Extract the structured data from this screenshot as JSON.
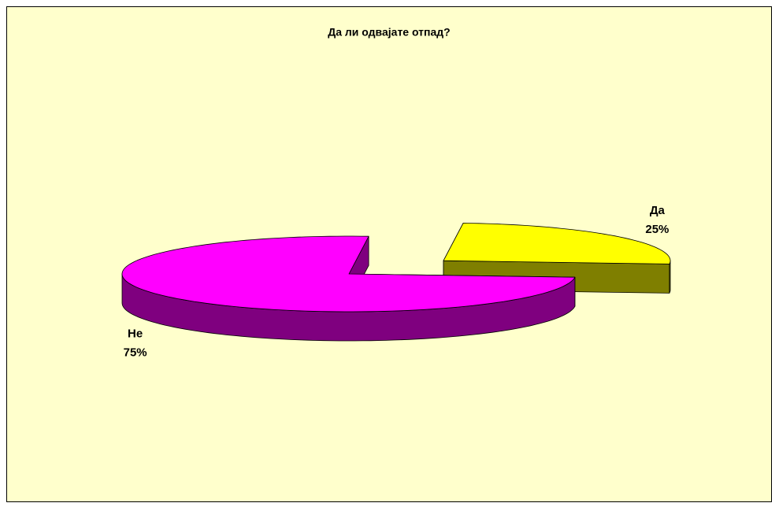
{
  "chart_data": {
    "type": "pie",
    "title": "Да ли одвајате отпад?",
    "categories": [
      "Да",
      "Не"
    ],
    "values": [
      25,
      75
    ],
    "value_labels": [
      "25%",
      "75%"
    ],
    "colors": [
      "#ffff00",
      "#ff00ff"
    ],
    "exploded": [
      true,
      false
    ],
    "three_d": true
  }
}
